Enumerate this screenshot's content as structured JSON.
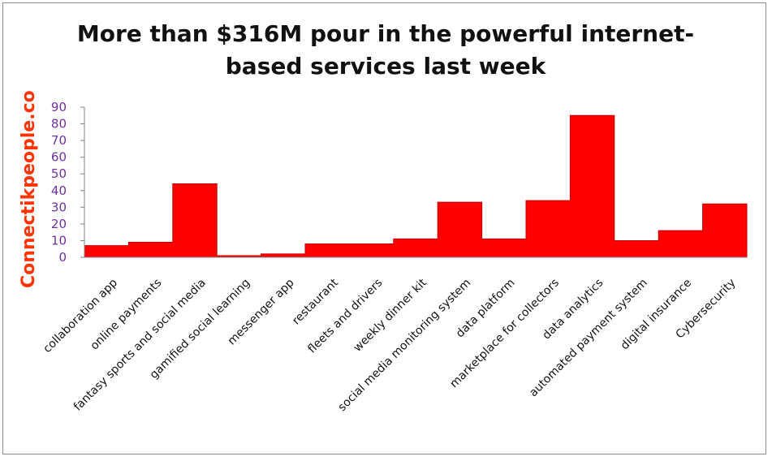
{
  "watermark": "Connectikpeople.co",
  "chart_data": {
    "type": "area",
    "title": "More than $316M pour in the powerful internet-based services last week",
    "categories": [
      "collaboration app",
      "online payments",
      "fantasy sports and social media",
      "gamified social learning",
      "messenger app",
      "restaurant",
      "fleets and drivers",
      "weekly dinner kit",
      "social media monitoring system",
      "data platform",
      "marketplace for collectors",
      "data analytics",
      "automated payment system",
      "digital insurance",
      "Cybersecurity"
    ],
    "values": [
      7,
      9,
      44,
      1,
      2,
      8,
      8,
      11,
      33,
      11,
      34,
      85,
      10,
      16,
      32
    ],
    "ylim": [
      0,
      90
    ],
    "yticks": [
      0,
      10,
      20,
      30,
      40,
      50,
      60,
      70,
      80,
      90
    ],
    "grid": false,
    "colors": {
      "fill": "#ff0000",
      "stroke": "#c00000",
      "tick_text": "#7030a0",
      "watermark": "#ff3300"
    }
  }
}
